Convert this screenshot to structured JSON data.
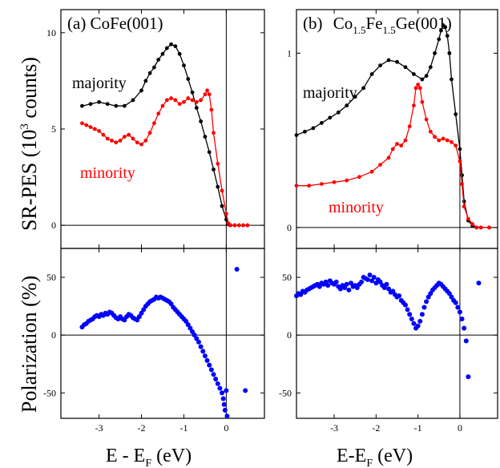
{
  "figure": {
    "ylabel_top": "SR-PES (10",
    "ylabel_top_exp": "3",
    "ylabel_top_end": " counts)",
    "ylabel_bottom": "Polarization (%)"
  },
  "colors": {
    "majority": "#000000",
    "minority": "#ff0000",
    "polarization": "#0000ff"
  },
  "chart_data": [
    {
      "id": "a-top",
      "type": "line",
      "title": "(a)  CoFe(001)",
      "xlim": [
        -3.9,
        0.9
      ],
      "ylim": [
        -1.2,
        11.2
      ],
      "xticks": [
        -3,
        -2,
        -1,
        0
      ],
      "yticks": [
        0,
        5,
        10
      ],
      "grid": false,
      "series": [
        {
          "name": "majority",
          "color": "#000000",
          "x": [
            -3.4,
            -3.2,
            -3.0,
            -2.8,
            -2.6,
            -2.4,
            -2.2,
            -2.0,
            -1.9,
            -1.8,
            -1.7,
            -1.6,
            -1.5,
            -1.4,
            -1.3,
            -1.2,
            -1.1,
            -1.0,
            -0.9,
            -0.8,
            -0.7,
            -0.6,
            -0.5,
            -0.4,
            -0.3,
            -0.2,
            -0.1,
            0.0,
            0.05,
            0.1,
            0.2,
            0.3,
            0.4,
            0.5
          ],
          "y": [
            6.2,
            6.3,
            6.4,
            6.3,
            6.2,
            6.2,
            6.5,
            7.0,
            7.5,
            7.9,
            8.2,
            8.6,
            8.9,
            9.2,
            9.4,
            9.3,
            8.9,
            8.3,
            7.6,
            6.9,
            6.1,
            5.4,
            4.6,
            3.8,
            2.9,
            2.0,
            1.0,
            0.3,
            0.05,
            0.0,
            0.0,
            0.0,
            0.0,
            0.0
          ]
        },
        {
          "name": "minority",
          "color": "#ff0000",
          "x": [
            -3.4,
            -3.3,
            -3.2,
            -3.1,
            -3.0,
            -2.9,
            -2.8,
            -2.7,
            -2.6,
            -2.5,
            -2.4,
            -2.3,
            -2.2,
            -2.1,
            -2.0,
            -1.9,
            -1.8,
            -1.7,
            -1.6,
            -1.5,
            -1.4,
            -1.3,
            -1.2,
            -1.1,
            -1.0,
            -0.9,
            -0.8,
            -0.7,
            -0.6,
            -0.5,
            -0.45,
            -0.4,
            -0.35,
            -0.3,
            -0.2,
            -0.1,
            0.0,
            0.05,
            0.1,
            0.2,
            0.3,
            0.4,
            0.5
          ],
          "y": [
            5.3,
            5.2,
            5.1,
            5.0,
            4.9,
            4.7,
            4.5,
            4.4,
            4.3,
            4.4,
            4.6,
            4.7,
            4.5,
            4.3,
            4.2,
            4.4,
            4.8,
            5.3,
            5.8,
            6.2,
            6.5,
            6.6,
            6.5,
            6.3,
            6.4,
            6.6,
            6.5,
            6.4,
            6.5,
            6.8,
            7.0,
            6.8,
            6.0,
            4.8,
            3.2,
            1.8,
            0.6,
            0.1,
            0.0,
            0.0,
            0.0,
            0.0,
            0.0
          ]
        }
      ]
    },
    {
      "id": "b-top",
      "type": "line",
      "title": "(b)  Co",
      "title_parts": [
        "Co",
        "1.5",
        "Fe",
        "1.5",
        "Ge(001)"
      ],
      "title_prefix": "(b)",
      "xlim": [
        -3.9,
        0.9
      ],
      "ylim": [
        -0.12,
        1.25
      ],
      "xticks": [
        -3,
        -2,
        -1,
        0
      ],
      "yticks": [
        0,
        1
      ],
      "grid": false,
      "series": [
        {
          "name": "majority",
          "color": "#000000",
          "x": [
            -3.9,
            -3.7,
            -3.5,
            -3.3,
            -3.1,
            -2.9,
            -2.7,
            -2.5,
            -2.3,
            -2.1,
            -1.9,
            -1.7,
            -1.5,
            -1.3,
            -1.1,
            -0.9,
            -0.8,
            -0.7,
            -0.6,
            -0.5,
            -0.45,
            -0.4,
            -0.35,
            -0.3,
            -0.25,
            -0.2,
            -0.1,
            0.0,
            0.05,
            0.1,
            0.2,
            0.3,
            0.4,
            0.5,
            0.7
          ],
          "y": [
            0.53,
            0.55,
            0.57,
            0.6,
            0.63,
            0.66,
            0.7,
            0.75,
            0.8,
            0.88,
            0.93,
            0.96,
            0.95,
            0.92,
            0.88,
            0.85,
            0.87,
            0.92,
            1.0,
            1.08,
            1.13,
            1.16,
            1.15,
            1.1,
            1.0,
            0.85,
            0.65,
            0.45,
            0.3,
            0.15,
            0.04,
            0.01,
            0.0,
            0.0,
            0.0
          ]
        },
        {
          "name": "minority",
          "color": "#ff0000",
          "x": [
            -3.9,
            -3.6,
            -3.3,
            -3.0,
            -2.7,
            -2.4,
            -2.1,
            -1.9,
            -1.7,
            -1.6,
            -1.5,
            -1.4,
            -1.3,
            -1.2,
            -1.1,
            -1.05,
            -1.0,
            -0.95,
            -0.9,
            -0.8,
            -0.7,
            -0.6,
            -0.5,
            -0.4,
            -0.3,
            -0.2,
            -0.1,
            0.0,
            0.05,
            0.1,
            0.2,
            0.3,
            0.4,
            0.5,
            0.7
          ],
          "y": [
            0.24,
            0.24,
            0.25,
            0.26,
            0.27,
            0.29,
            0.32,
            0.36,
            0.4,
            0.45,
            0.48,
            0.47,
            0.5,
            0.58,
            0.7,
            0.8,
            0.82,
            0.8,
            0.72,
            0.62,
            0.55,
            0.52,
            0.5,
            0.51,
            0.5,
            0.49,
            0.47,
            0.38,
            0.25,
            0.12,
            0.05,
            0.02,
            0.0,
            0.0,
            0.0
          ]
        }
      ]
    },
    {
      "id": "a-bottom",
      "type": "scatter",
      "xlim": [
        -3.9,
        0.9
      ],
      "ylim": [
        -72,
        75
      ],
      "xticks": [
        -3,
        -2,
        -1,
        0
      ],
      "xticklabels": [
        "-3",
        "-2",
        "-1",
        "0"
      ],
      "yticks": [
        -50,
        0,
        50
      ],
      "xlabel": "E - E",
      "xlabel_sub": "F",
      "xlabel_end": "  (eV)",
      "grid": false,
      "series": [
        {
          "name": "",
          "color": "#0000ff",
          "x": [
            -3.4,
            -3.35,
            -3.3,
            -3.25,
            -3.2,
            -3.15,
            -3.1,
            -3.05,
            -3.0,
            -2.95,
            -2.9,
            -2.85,
            -2.8,
            -2.75,
            -2.7,
            -2.65,
            -2.6,
            -2.55,
            -2.5,
            -2.45,
            -2.4,
            -2.35,
            -2.3,
            -2.25,
            -2.2,
            -2.15,
            -2.1,
            -2.05,
            -2.0,
            -1.95,
            -1.9,
            -1.85,
            -1.8,
            -1.75,
            -1.7,
            -1.65,
            -1.6,
            -1.55,
            -1.5,
            -1.45,
            -1.4,
            -1.35,
            -1.3,
            -1.25,
            -1.2,
            -1.15,
            -1.1,
            -1.05,
            -1.0,
            -0.95,
            -0.9,
            -0.85,
            -0.8,
            -0.75,
            -0.7,
            -0.65,
            -0.6,
            -0.55,
            -0.5,
            -0.45,
            -0.4,
            -0.35,
            -0.3,
            -0.25,
            -0.2,
            -0.15,
            -0.1,
            -0.07,
            -0.05,
            -0.03,
            0.0,
            0.02,
            0.25,
            0.45
          ],
          "y": [
            7,
            9,
            10,
            12,
            13,
            14,
            16,
            17,
            16,
            18,
            17,
            19,
            18,
            20,
            19,
            17,
            15,
            14,
            16,
            14,
            13,
            16,
            18,
            17,
            15,
            14,
            13,
            16,
            19,
            22,
            25,
            27,
            29,
            30,
            31,
            33,
            32,
            33,
            32,
            31,
            30,
            29,
            27,
            24,
            22,
            20,
            18,
            16,
            14,
            12,
            9,
            6,
            3,
            0,
            -3,
            -6,
            -10,
            -14,
            -18,
            -22,
            -26,
            -30,
            -34,
            -38,
            -42,
            -46,
            -50,
            -55,
            -60,
            -65,
            -48,
            -70,
            57,
            -48
          ]
        }
      ]
    },
    {
      "id": "b-bottom",
      "type": "scatter",
      "xlim": [
        -3.9,
        0.9
      ],
      "ylim": [
        -72,
        75
      ],
      "xticks": [
        -3,
        -2,
        -1,
        0
      ],
      "xticklabels": [
        "-3",
        "-2",
        "-1",
        "0"
      ],
      "yticks": [
        -50,
        0,
        50
      ],
      "xlabel": "E-E",
      "xlabel_sub": "F",
      "xlabel_end": " (eV)",
      "grid": false,
      "series": [
        {
          "name": "",
          "color": "#0000ff",
          "x": [
            -3.9,
            -3.85,
            -3.8,
            -3.75,
            -3.7,
            -3.65,
            -3.6,
            -3.55,
            -3.5,
            -3.45,
            -3.4,
            -3.35,
            -3.3,
            -3.25,
            -3.2,
            -3.15,
            -3.1,
            -3.05,
            -3.0,
            -2.95,
            -2.9,
            -2.85,
            -2.8,
            -2.75,
            -2.7,
            -2.65,
            -2.6,
            -2.55,
            -2.5,
            -2.45,
            -2.4,
            -2.35,
            -2.3,
            -2.25,
            -2.2,
            -2.15,
            -2.1,
            -2.05,
            -2.0,
            -1.95,
            -1.9,
            -1.85,
            -1.8,
            -1.75,
            -1.7,
            -1.65,
            -1.6,
            -1.55,
            -1.5,
            -1.45,
            -1.4,
            -1.35,
            -1.3,
            -1.25,
            -1.2,
            -1.15,
            -1.1,
            -1.05,
            -1.0,
            -0.95,
            -0.9,
            -0.85,
            -0.8,
            -0.75,
            -0.7,
            -0.65,
            -0.6,
            -0.55,
            -0.5,
            -0.45,
            -0.4,
            -0.35,
            -0.3,
            -0.25,
            -0.2,
            -0.15,
            -0.1,
            -0.05,
            0.0,
            0.05,
            0.1,
            0.15,
            0.2,
            0.45
          ],
          "y": [
            34,
            36,
            35,
            38,
            37,
            39,
            40,
            41,
            42,
            43,
            44,
            42,
            45,
            44,
            46,
            43,
            47,
            45,
            44,
            46,
            42,
            40,
            43,
            41,
            44,
            39,
            45,
            42,
            43,
            41,
            44,
            46,
            50,
            49,
            48,
            52,
            47,
            50,
            45,
            48,
            46,
            43,
            41,
            44,
            40,
            37,
            38,
            35,
            33,
            34,
            30,
            28,
            26,
            22,
            18,
            14,
            10,
            6,
            8,
            12,
            18,
            24,
            29,
            33,
            36,
            39,
            41,
            43,
            45,
            44,
            42,
            40,
            38,
            36,
            33,
            30,
            28,
            24,
            20,
            14,
            6,
            -5,
            -36,
            45
          ]
        }
      ]
    }
  ]
}
